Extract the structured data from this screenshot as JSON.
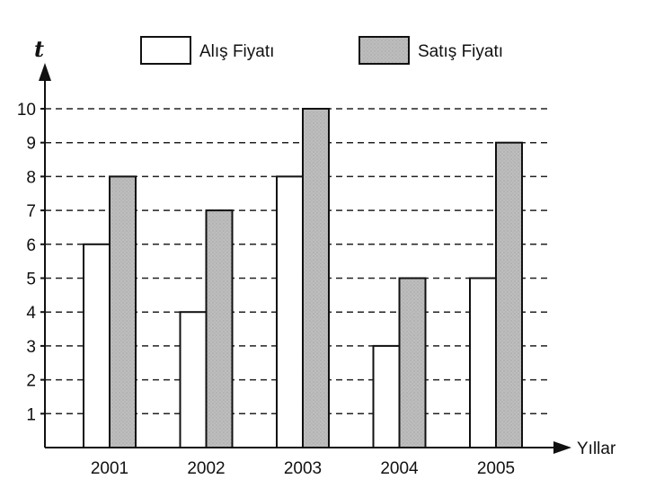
{
  "chart_data": {
    "type": "bar",
    "categories": [
      "2001",
      "2002",
      "2003",
      "2004",
      "2005"
    ],
    "series": [
      {
        "name": "Alış Fiyatı",
        "values": [
          6,
          4,
          8,
          3,
          5
        ]
      },
      {
        "name": "Satış Fiyatı",
        "values": [
          8,
          7,
          10,
          5,
          9
        ]
      }
    ],
    "title": "",
    "xlabel": "Yıllar",
    "ylabel": "t",
    "ylim": [
      0,
      10
    ],
    "yticks": [
      1,
      2,
      3,
      4,
      5,
      6,
      7,
      8,
      9,
      10
    ],
    "grid": "dashed horizontal",
    "legend": "top",
    "colors": {
      "series_1": "#ffffff",
      "series_2": "#bdbdbd",
      "stroke": "#111111"
    }
  }
}
